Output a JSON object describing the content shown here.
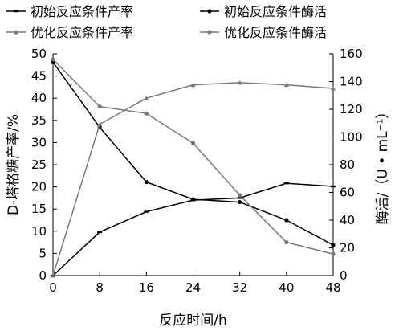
{
  "chart_data": {
    "type": "line",
    "x": [
      0,
      8,
      16,
      24,
      32,
      40,
      48
    ],
    "xlabel": "反应时间/h",
    "ylabel": "D-塔格糖产率/%",
    "ylabel_right": "酶活/（U • mL⁻¹）",
    "xlim": [
      0,
      48
    ],
    "xticks": [
      "0",
      "8",
      "16",
      "24",
      "32",
      "40",
      "48"
    ],
    "ylim": [
      0,
      50
    ],
    "yticks": [
      "0",
      "5",
      "10",
      "15",
      "20",
      "25",
      "30",
      "35",
      "40",
      "45",
      "50"
    ],
    "ylim_right": [
      0,
      160
    ],
    "yticks_right": [
      "0",
      "20",
      "40",
      "60",
      "80",
      "100",
      "120",
      "140",
      "160"
    ],
    "grid": false,
    "legend_position": "top",
    "series": [
      {
        "name": "初始反应条件产率",
        "axis": "left",
        "color": "#000000",
        "marker": "dash",
        "values": [
          0,
          9.8,
          14.4,
          17.0,
          17.5,
          20.8,
          20.1
        ]
      },
      {
        "name": "初始反应条件酶活",
        "axis": "right",
        "color": "#000000",
        "marker": "dot",
        "values": [
          154,
          107,
          67.5,
          55,
          53,
          40,
          22
        ]
      },
      {
        "name": "优化反应条件产率",
        "axis": "left",
        "color": "#777777",
        "marker": "triangle",
        "values": [
          0,
          34.1,
          40.0,
          43.0,
          43.5,
          43.0,
          42.2
        ]
      },
      {
        "name": "优化反应条件酶活",
        "axis": "right",
        "color": "#777777",
        "marker": "dot",
        "values": [
          156,
          122,
          117,
          95.5,
          58,
          24,
          15.5
        ]
      }
    ]
  }
}
